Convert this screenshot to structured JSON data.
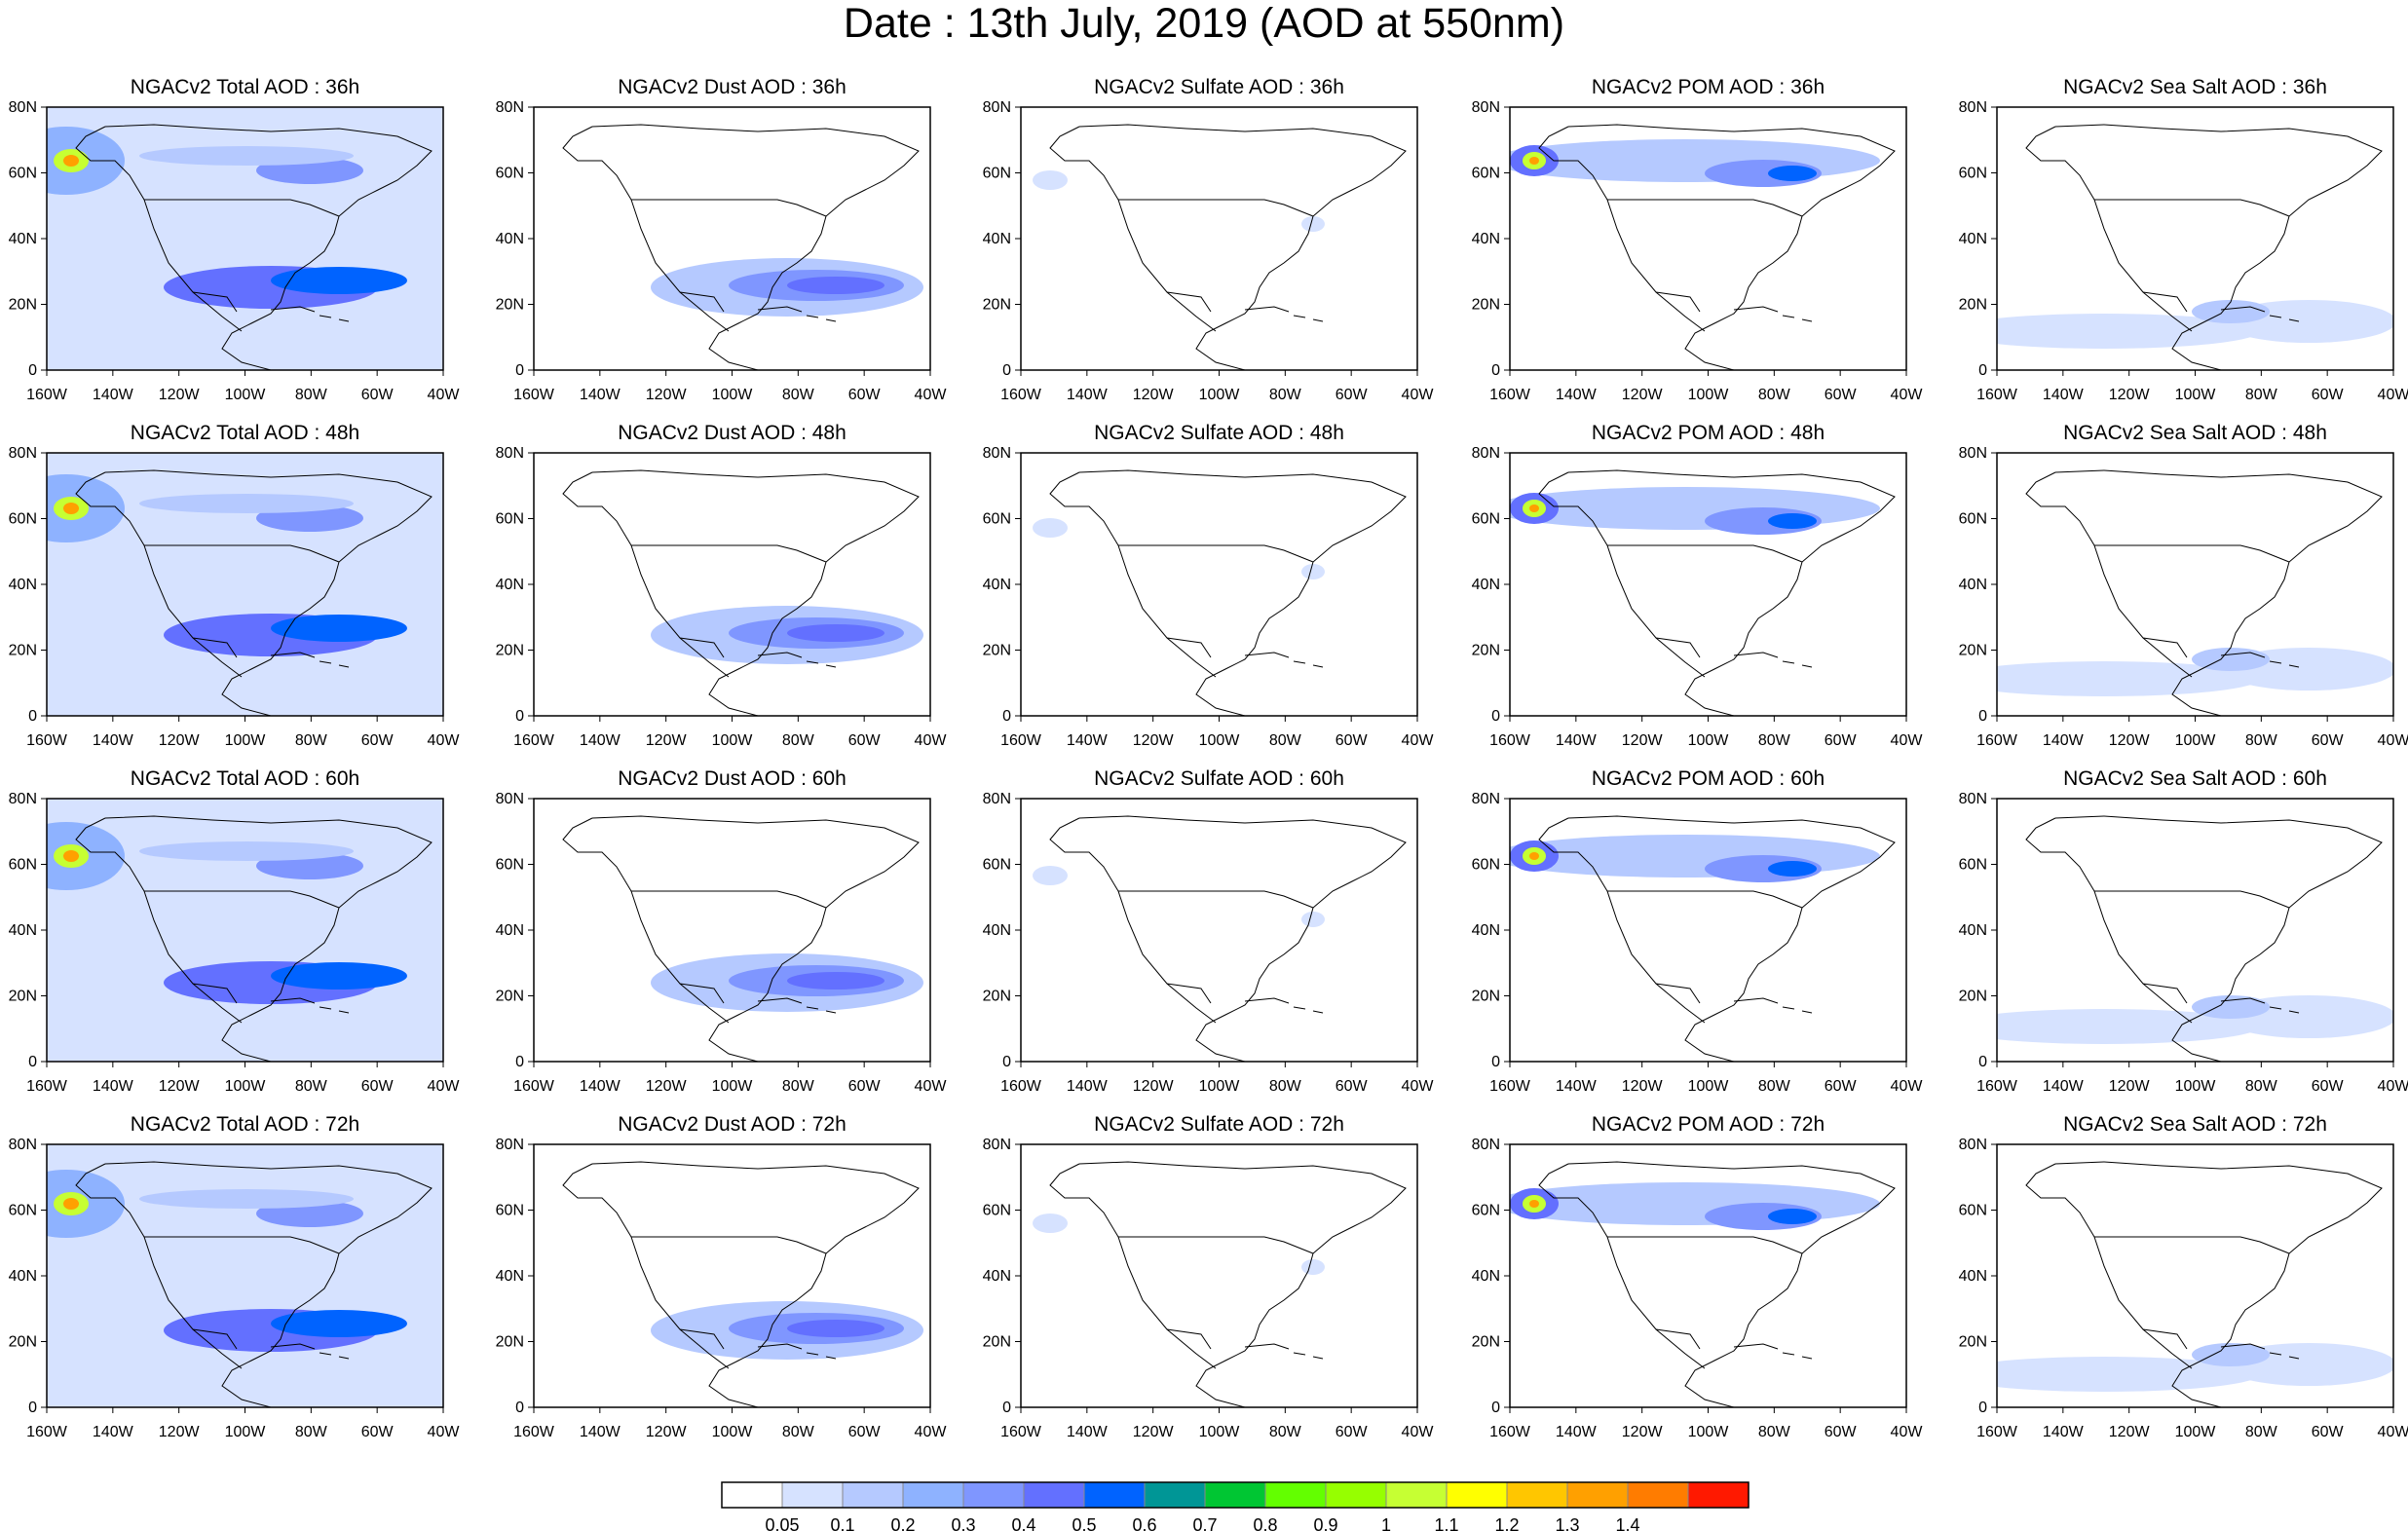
{
  "title": "Date : 13th July, 2019 (AOD at 550nm)",
  "panels": [
    [
      "NGACv2 Total AOD : 36h",
      "NGACv2 Dust AOD : 36h",
      "NGACv2 Sulfate AOD : 36h",
      "NGACv2 POM AOD : 36h",
      "NGACv2 Sea Salt AOD : 36h"
    ],
    [
      "NGACv2 Total AOD : 48h",
      "NGACv2 Dust AOD : 48h",
      "NGACv2 Sulfate AOD : 48h",
      "NGACv2 POM AOD : 48h",
      "NGACv2 Sea Salt AOD : 48h"
    ],
    [
      "NGACv2 Total AOD : 60h",
      "NGACv2 Dust AOD : 60h",
      "NGACv2 Sulfate AOD : 60h",
      "NGACv2 POM AOD : 60h",
      "NGACv2 Sea Salt AOD : 60h"
    ],
    [
      "NGACv2 Total AOD : 72h",
      "NGACv2 Dust AOD : 72h",
      "NGACv2 Sulfate AOD : 72h",
      "NGACv2 POM AOD : 72h",
      "NGACv2 Sea Salt  AOD : 72h"
    ]
  ],
  "lat_ticks": [
    "0",
    "20N",
    "40N",
    "60N",
    "80N"
  ],
  "lon_ticks": [
    "160W",
    "140W",
    "120W",
    "100W",
    "80W",
    "60W",
    "40W"
  ],
  "colorbar": {
    "colors": [
      "#ffffff",
      "#d6e2ff",
      "#b5c9ff",
      "#8eb2ff",
      "#7f96ff",
      "#6370ff",
      "#0063ff",
      "#009696",
      "#00c633",
      "#63ff00",
      "#96ff00",
      "#c6ff33",
      "#ffff00",
      "#ffc600",
      "#ffa000",
      "#ff7c00",
      "#ff1900"
    ],
    "labels": [
      "0.05",
      "0.1",
      "0.2",
      "0.3",
      "0.4",
      "0.5",
      "0.6",
      "0.7",
      "0.8",
      "0.9",
      "1",
      "1.1",
      "1.2",
      "1.3",
      "1.4"
    ]
  }
}
